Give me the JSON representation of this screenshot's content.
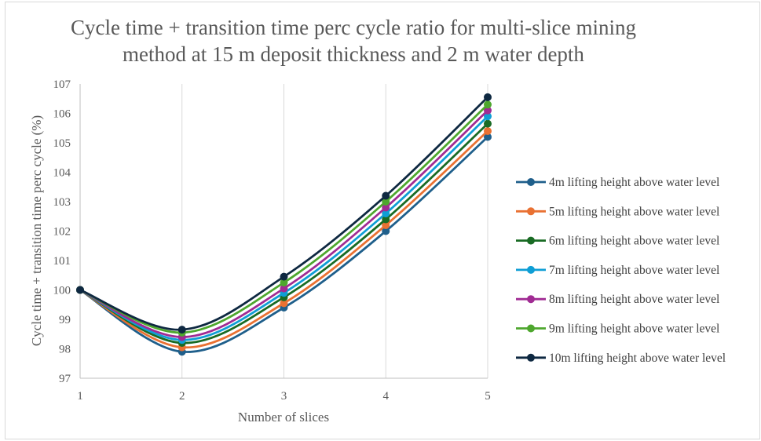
{
  "chart_data": {
    "type": "line",
    "title_line1": "Cycle time + transition time perc cycle ratio for multi-slice mining",
    "title_line2": "method at 15 m deposit thickness and 2 m water depth",
    "xlabel": "Number of slices",
    "ylabel": "Cycle time + transition time perc cycle  (%)",
    "x": [
      1,
      2,
      3,
      4,
      5
    ],
    "xlim": [
      1,
      5
    ],
    "ylim": [
      97,
      107
    ],
    "y_ticks": [
      97,
      98,
      99,
      100,
      101,
      102,
      103,
      104,
      105,
      106,
      107
    ],
    "grid": "vertical",
    "legend_position": "right",
    "smooth": true,
    "series": [
      {
        "name": "4m lifting height above water level",
        "color": "#1f5f8b",
        "values": [
          100,
          97.9,
          99.4,
          102.0,
          105.2
        ]
      },
      {
        "name": "5m lifting height above water level",
        "color": "#e97132",
        "values": [
          100,
          98.05,
          99.55,
          102.2,
          105.4
        ]
      },
      {
        "name": "6m lifting height above water level",
        "color": "#196b24",
        "values": [
          100,
          98.2,
          99.75,
          102.4,
          105.65
        ]
      },
      {
        "name": "7m lifting height above water level",
        "color": "#0f9ed5",
        "values": [
          100,
          98.3,
          99.9,
          102.6,
          105.9
        ]
      },
      {
        "name": "8m lifting height above water level",
        "color": "#a02b93",
        "values": [
          100,
          98.4,
          100.05,
          102.8,
          106.1
        ]
      },
      {
        "name": "9m lifting height above water level",
        "color": "#4ea72e",
        "values": [
          100,
          98.55,
          100.25,
          103.0,
          106.3
        ]
      },
      {
        "name": "10m lifting height above water level",
        "color": "#0e2841",
        "values": [
          100,
          98.65,
          100.45,
          103.2,
          106.55
        ]
      }
    ]
  }
}
